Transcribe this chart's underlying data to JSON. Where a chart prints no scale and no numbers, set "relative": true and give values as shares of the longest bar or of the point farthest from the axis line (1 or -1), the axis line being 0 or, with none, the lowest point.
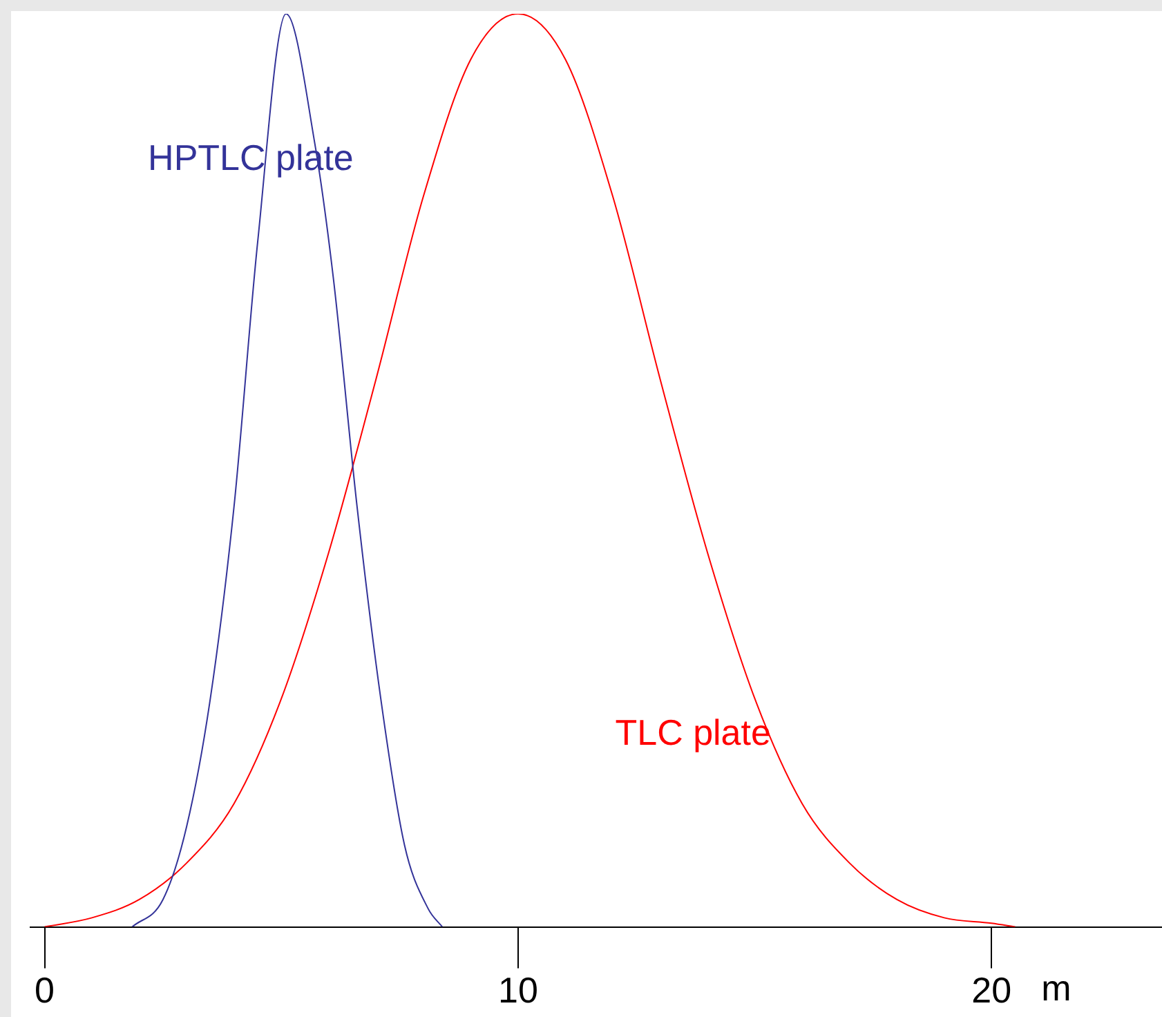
{
  "chart_data": {
    "type": "line",
    "relative": true,
    "xlabel": "m",
    "xlim": [
      -0.3,
      23.6
    ],
    "xticks": [
      0,
      10,
      20
    ],
    "grid": false,
    "legend": false,
    "marker": "none",
    "line_style": "solid",
    "series": [
      {
        "name": "HPTLC plate",
        "color": "#333399",
        "x": [
          1.85,
          2.5,
          3,
          3.5,
          4,
          4.5,
          5.1,
          5.7,
          6.1,
          6.6,
          7.1,
          7.6,
          8.1,
          8.4
        ],
        "values": [
          0,
          0.03,
          0.11,
          0.25,
          0.46,
          0.75,
          1,
          0.86,
          0.71,
          0.46,
          0.25,
          0.09,
          0.02,
          0
        ]
      },
      {
        "name": "TLC plate",
        "color": "#ff0000",
        "x": [
          0,
          1,
          2,
          3,
          4,
          5,
          6,
          7,
          8,
          9,
          10,
          11,
          12,
          13,
          14,
          15,
          16,
          17,
          18,
          19,
          20,
          20.5
        ],
        "values": [
          0,
          0.01,
          0.03,
          0.07,
          0.135,
          0.25,
          0.41,
          0.6,
          0.8,
          0.95,
          1,
          0.95,
          0.8,
          0.6,
          0.41,
          0.25,
          0.135,
          0.07,
          0.03,
          0.01,
          0.004,
          0
        ]
      }
    ]
  }
}
